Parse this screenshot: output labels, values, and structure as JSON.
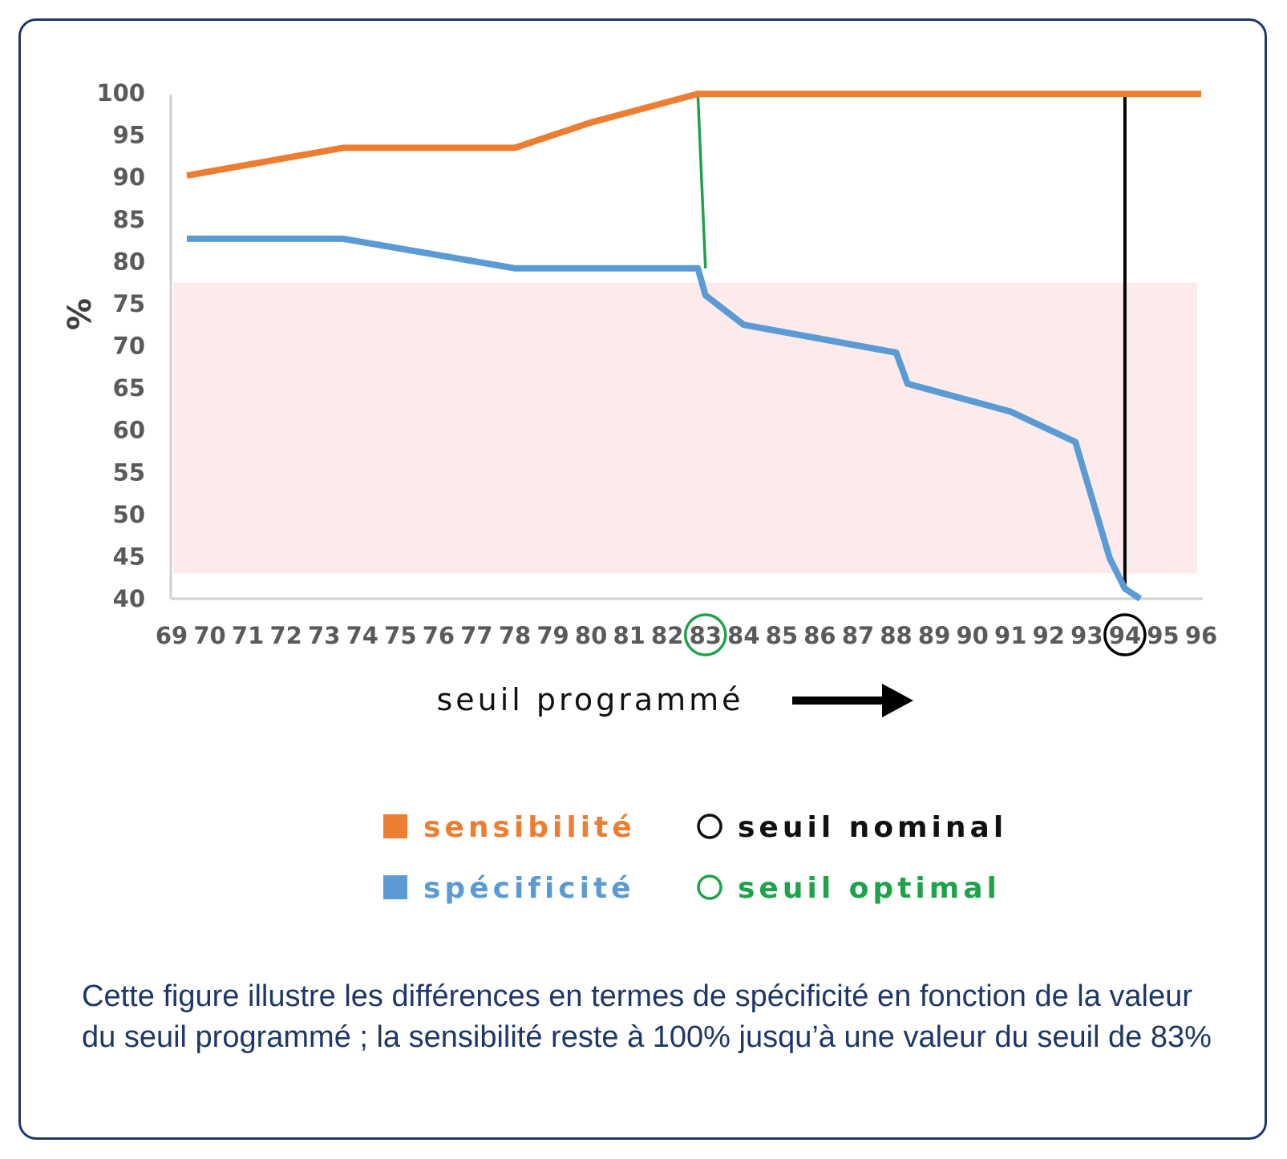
{
  "chart_data": {
    "type": "line",
    "title": "",
    "xlabel": "seuil programmé",
    "ylabel": "%",
    "x_ticks": [
      "69",
      "70",
      "71",
      "72",
      "73",
      "74",
      "75",
      "76",
      "77",
      "78",
      "79",
      "80",
      "81",
      "82",
      "83",
      "84",
      "85",
      "86",
      "87",
      "88",
      "89",
      "90",
      "91",
      "92",
      "93",
      "94",
      "95",
      "96"
    ],
    "y_ticks": [
      "40",
      "45",
      "50",
      "55",
      "60",
      "65",
      "70",
      "75",
      "80",
      "85",
      "90",
      "95",
      "100"
    ],
    "xlim": [
      69,
      96
    ],
    "ylim": [
      40,
      100
    ],
    "grid": false,
    "shaded_band": {
      "y_range": [
        43,
        77.5
      ],
      "color": "#fdebeb"
    },
    "series": [
      {
        "name": "sensibilité",
        "color": "#ed7d31",
        "points": [
          [
            69.4,
            90.2
          ],
          [
            73.5,
            93.5
          ],
          [
            78,
            93.5
          ],
          [
            80,
            96.5
          ],
          [
            82.8,
            99.9
          ],
          [
            96,
            99.9
          ]
        ]
      },
      {
        "name": "spécificité",
        "color": "#5b9bd5",
        "points": [
          [
            69.4,
            82.7
          ],
          [
            73.5,
            82.7
          ],
          [
            78,
            79.2
          ],
          [
            82.8,
            79.2
          ],
          [
            83,
            76
          ],
          [
            84,
            72.5
          ],
          [
            88,
            69.2
          ],
          [
            88.3,
            65.5
          ],
          [
            91,
            62.2
          ],
          [
            92.7,
            58.6
          ],
          [
            93.6,
            44.8
          ],
          [
            94,
            41.2
          ],
          [
            94.4,
            40
          ]
        ]
      }
    ],
    "markers": [
      {
        "name": "seuil optimal",
        "x": 83,
        "color": "#1fa34a"
      },
      {
        "name": "seuil nominal",
        "x": 94,
        "color": "#000000"
      }
    ]
  },
  "legend": {
    "items": [
      {
        "label": "sensibilité",
        "color": "#ed7d31",
        "symbol": "square"
      },
      {
        "label": "seuil nominal",
        "color": "#111111",
        "symbol": "circle"
      },
      {
        "label": "spécificité",
        "color": "#5b9bd5",
        "symbol": "square"
      },
      {
        "label": "seuil optimal",
        "color": "#1fa34a",
        "symbol": "circle"
      }
    ]
  },
  "caption": "Cette figure illustre les différences en termes de spécificité en fonction de la valeur du seuil programmé ; la sensibilité reste à 100% jusqu’à une valeur du seuil de 83%",
  "colors": {
    "frame": "#1e3768",
    "caption": "#1e3768"
  }
}
